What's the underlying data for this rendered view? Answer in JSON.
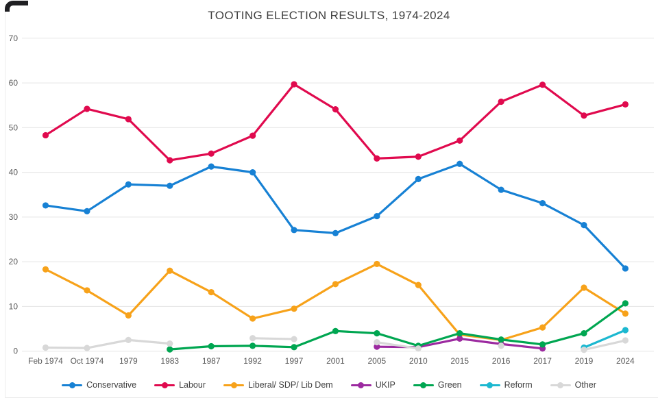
{
  "chart_data": {
    "type": "line",
    "title": "TOOTING ELECTION RESULTS, 1974-2024",
    "xlabel": "",
    "ylabel": "",
    "ylim": [
      0,
      70
    ],
    "yticks": [
      0,
      10,
      20,
      30,
      40,
      50,
      60,
      70
    ],
    "grid": true,
    "legend_position": "bottom",
    "x_categories": [
      "Feb 1974",
      "Oct 1974",
      "1979",
      "1983",
      "1987",
      "1992",
      "1997",
      "2001",
      "2005",
      "2010",
      "2015",
      "2016",
      "2017",
      "2019",
      "2024"
    ],
    "series": [
      {
        "name": "Conservative",
        "color": "#1781d4",
        "values": [
          32.6,
          31.3,
          37.3,
          37.0,
          41.3,
          40.0,
          27.1,
          26.4,
          30.2,
          38.5,
          41.9,
          36.1,
          33.1,
          28.2,
          18.5
        ]
      },
      {
        "name": "Labour",
        "color": "#e00a4e",
        "values": [
          48.3,
          54.2,
          51.9,
          42.7,
          44.2,
          48.2,
          59.7,
          54.1,
          43.1,
          43.5,
          47.1,
          55.8,
          59.6,
          52.7,
          55.2
        ]
      },
      {
        "name": "Liberal/ SDP/ Lib Dem",
        "color": "#f7a21a",
        "values": [
          18.3,
          13.6,
          8.0,
          18.0,
          13.2,
          7.3,
          9.5,
          15.0,
          19.5,
          14.8,
          3.7,
          2.5,
          5.3,
          14.2,
          8.4
        ]
      },
      {
        "name": "UKIP",
        "color": "#9c2aa0",
        "values": [
          null,
          null,
          null,
          null,
          null,
          null,
          null,
          null,
          1.0,
          0.9,
          2.8,
          1.6,
          0.6,
          null,
          null
        ]
      },
      {
        "name": "Green",
        "color": "#00a651",
        "values": [
          null,
          null,
          null,
          0.4,
          1.1,
          1.2,
          0.9,
          4.5,
          4.0,
          1.2,
          4.0,
          2.6,
          1.5,
          4.0,
          10.7
        ]
      },
      {
        "name": "Reform",
        "color": "#1cb8d0",
        "values": [
          null,
          null,
          null,
          null,
          null,
          null,
          null,
          null,
          null,
          null,
          null,
          null,
          null,
          0.8,
          4.7
        ]
      },
      {
        "name": "Other",
        "color": "#d8d8d8",
        "values": [
          0.8,
          0.7,
          2.5,
          1.7,
          null,
          2.9,
          2.7,
          null,
          2.0,
          0.6,
          null,
          1.2,
          null,
          0.3,
          2.4
        ]
      }
    ],
    "colors": {
      "grid": "#e5e5e5",
      "axis_text": "#595959",
      "title_text": "#3f3f3f"
    }
  }
}
